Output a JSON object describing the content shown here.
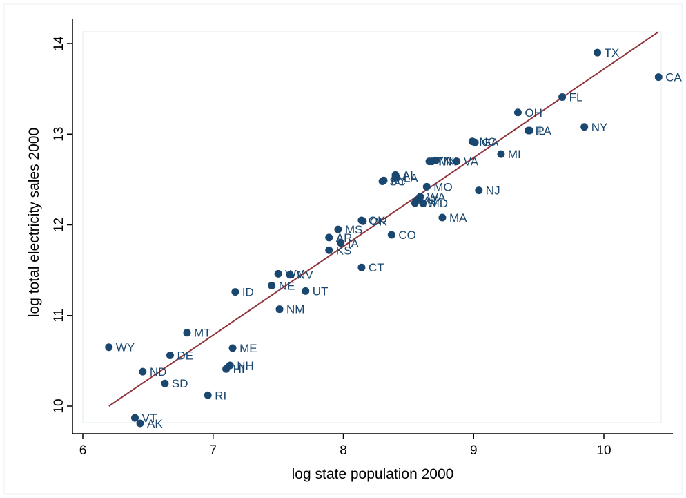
{
  "chart_data": {
    "type": "scatter",
    "xlabel": "log state population 2000",
    "ylabel": "log total electricity sales 2000",
    "xlim": [
      6,
      10.5
    ],
    "ylim": [
      9.8,
      14.1
    ],
    "xticks": [
      6,
      7,
      8,
      9,
      10
    ],
    "yticks": [
      10,
      11,
      12,
      13,
      14
    ],
    "grid": false,
    "legend": "none",
    "colors": {
      "points": "#1a476f",
      "fit_line": "#90353b",
      "axis": "#000000"
    },
    "fit_line": {
      "x": [
        6.2,
        10.42
      ],
      "y": [
        10.0,
        14.13
      ]
    },
    "points": [
      {
        "label": "TX",
        "x": 9.95,
        "y": 13.9
      },
      {
        "label": "CA",
        "x": 10.42,
        "y": 13.63
      },
      {
        "label": "FL",
        "x": 9.68,
        "y": 13.41
      },
      {
        "label": "OH",
        "x": 9.34,
        "y": 13.24
      },
      {
        "label": "NY",
        "x": 9.85,
        "y": 13.08
      },
      {
        "label": "IL",
        "x": 9.42,
        "y": 13.04
      },
      {
        "label": "PA",
        "x": 9.43,
        "y": 13.04
      },
      {
        "label": "MI",
        "x": 9.21,
        "y": 12.78
      },
      {
        "label": "NC",
        "x": 8.99,
        "y": 12.92
      },
      {
        "label": "GA",
        "x": 9.01,
        "y": 12.91
      },
      {
        "label": "TN",
        "x": 8.66,
        "y": 12.7
      },
      {
        "label": "IN",
        "x": 8.71,
        "y": 12.71
      },
      {
        "label": "MN",
        "x": 8.68,
        "y": 12.7
      },
      {
        "label": "VA",
        "x": 8.87,
        "y": 12.7
      },
      {
        "label": "NJ",
        "x": 9.04,
        "y": 12.38
      },
      {
        "label": "AL",
        "x": 8.4,
        "y": 12.55
      },
      {
        "label": "SC",
        "x": 8.3,
        "y": 12.48
      },
      {
        "label": "KY",
        "x": 8.31,
        "y": 12.49
      },
      {
        "label": "LA",
        "x": 8.41,
        "y": 12.52
      },
      {
        "label": "MO",
        "x": 8.64,
        "y": 12.42
      },
      {
        "label": "WA",
        "x": 8.59,
        "y": 12.31
      },
      {
        "label": "AZ",
        "x": 8.56,
        "y": 12.27
      },
      {
        "label": "WI",
        "x": 8.55,
        "y": 12.24
      },
      {
        "label": "MD",
        "x": 8.61,
        "y": 12.24
      },
      {
        "label": "MA",
        "x": 8.76,
        "y": 12.08
      },
      {
        "label": "OK",
        "x": 8.14,
        "y": 12.05
      },
      {
        "label": "OR",
        "x": 8.15,
        "y": 12.04
      },
      {
        "label": "CO",
        "x": 8.37,
        "y": 11.89
      },
      {
        "label": "MS",
        "x": 7.96,
        "y": 11.95
      },
      {
        "label": "AR",
        "x": 7.89,
        "y": 11.86
      },
      {
        "label": "IA",
        "x": 7.98,
        "y": 11.8
      },
      {
        "label": "KS",
        "x": 7.89,
        "y": 11.72
      },
      {
        "label": "CT",
        "x": 8.14,
        "y": 11.53
      },
      {
        "label": "WV",
        "x": 7.5,
        "y": 11.46
      },
      {
        "label": "NV",
        "x": 7.59,
        "y": 11.45
      },
      {
        "label": "NE",
        "x": 7.45,
        "y": 11.33
      },
      {
        "label": "UT",
        "x": 7.71,
        "y": 11.27
      },
      {
        "label": "ID",
        "x": 7.17,
        "y": 11.26
      },
      {
        "label": "NM",
        "x": 7.51,
        "y": 11.07
      },
      {
        "label": "MT",
        "x": 6.8,
        "y": 10.81
      },
      {
        "label": "WY",
        "x": 6.2,
        "y": 10.65
      },
      {
        "label": "ME",
        "x": 7.15,
        "y": 10.64
      },
      {
        "label": "DE",
        "x": 6.67,
        "y": 10.56
      },
      {
        "label": "NH",
        "x": 7.13,
        "y": 10.45
      },
      {
        "label": "HI",
        "x": 7.1,
        "y": 10.41
      },
      {
        "label": "ND",
        "x": 6.46,
        "y": 10.38
      },
      {
        "label": "SD",
        "x": 6.63,
        "y": 10.25
      },
      {
        "label": "RI",
        "x": 6.96,
        "y": 10.12
      },
      {
        "label": "VT",
        "x": 6.4,
        "y": 9.87
      },
      {
        "label": "AK",
        "x": 6.44,
        "y": 9.81
      }
    ]
  }
}
